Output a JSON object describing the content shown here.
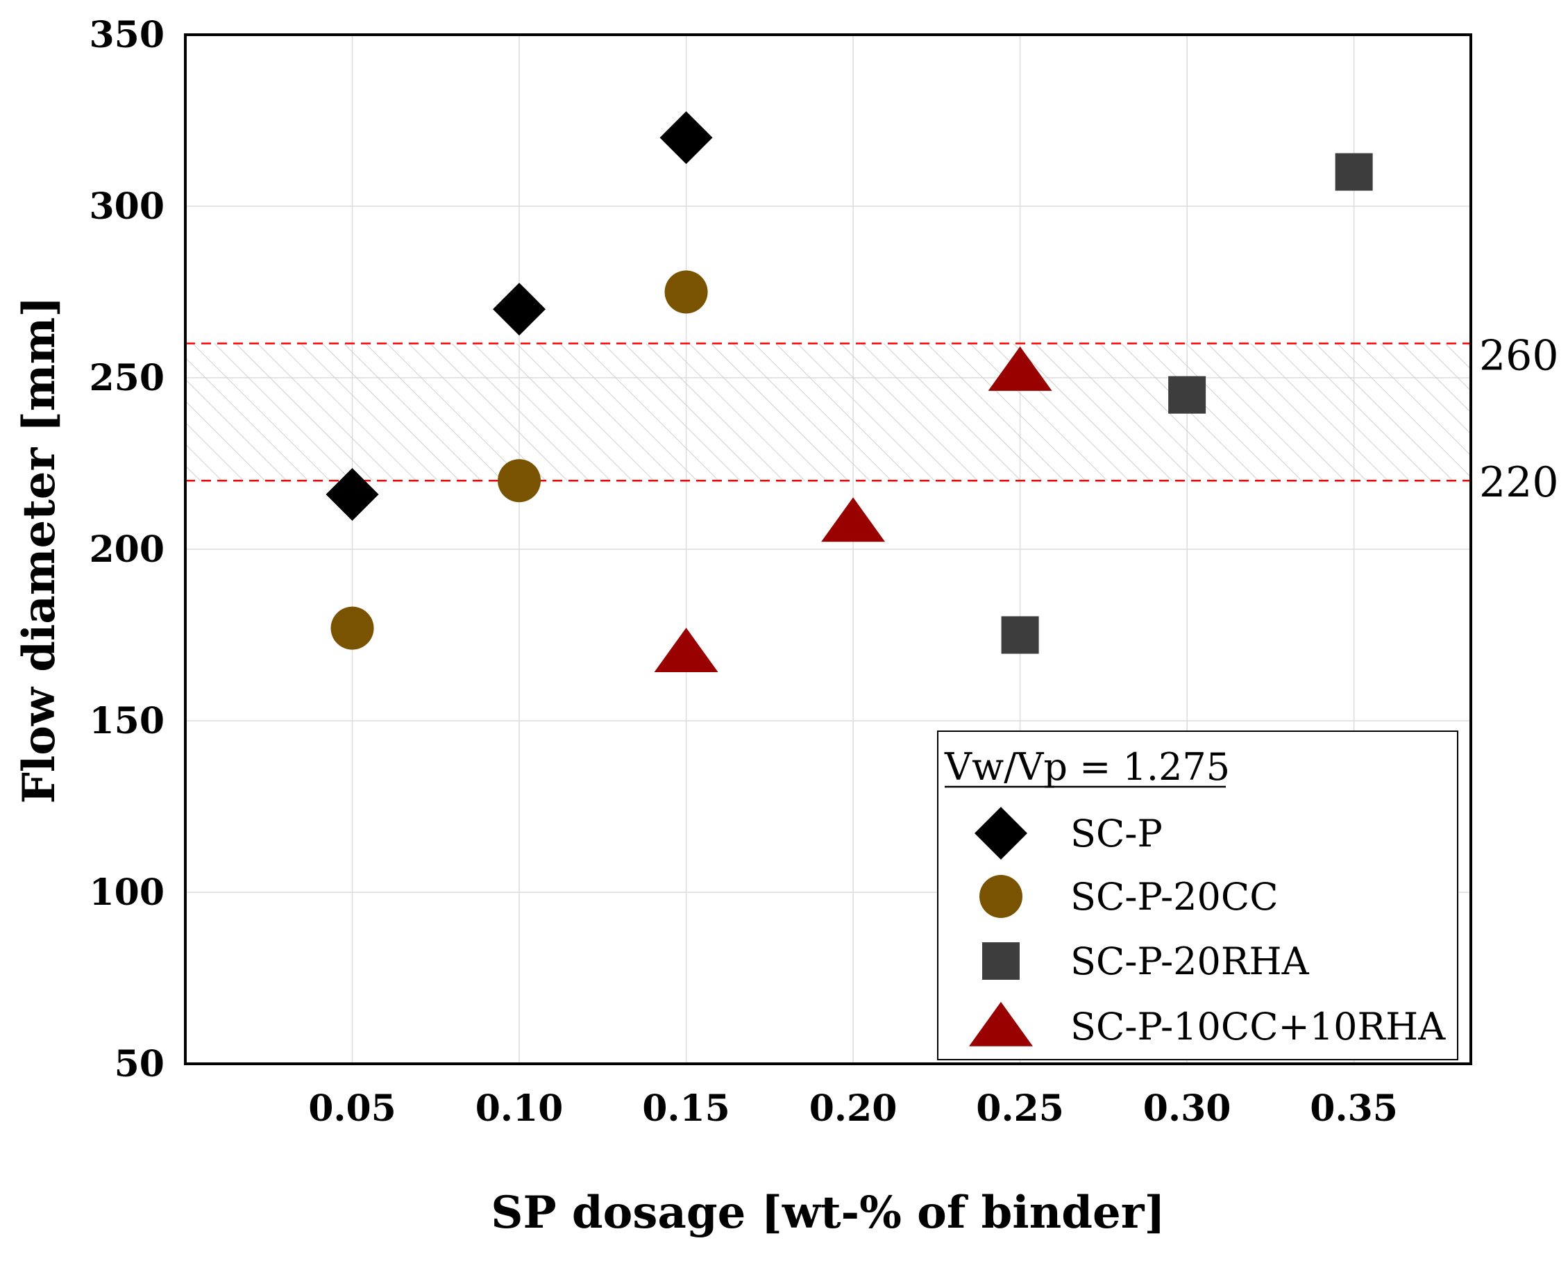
{
  "chart_data": {
    "type": "scatter",
    "title": "",
    "xlabel": "SP dosage [wt-% of binder]",
    "ylabel": "Flow diameter [mm]",
    "xlim": [
      0.0,
      0.385
    ],
    "ylim": [
      50,
      350
    ],
    "xticks": [
      "0.05",
      "0.10",
      "0.15",
      "0.20",
      "0.25",
      "0.30",
      "0.35"
    ],
    "xtick_values": [
      0.05,
      0.1,
      0.15,
      0.2,
      0.25,
      0.3,
      0.35
    ],
    "yticks": [
      "50",
      "100",
      "150",
      "200",
      "250",
      "300",
      "350"
    ],
    "ytick_values": [
      50,
      100,
      150,
      200,
      250,
      300,
      350
    ],
    "grid": true,
    "reference_band": {
      "lower": 220,
      "upper": 260,
      "lower_label": "220",
      "upper_label": "260",
      "color": "#ff0000",
      "hatched": true
    },
    "legend": {
      "title": "Vw/Vp = 1.275",
      "placement": "bottom-right"
    },
    "series": [
      {
        "name": "SC-P",
        "marker": "diamond",
        "color": "#000000",
        "points": [
          [
            0.05,
            216
          ],
          [
            0.1,
            270
          ],
          [
            0.15,
            320
          ]
        ]
      },
      {
        "name": "SC-P-20CC",
        "marker": "circle",
        "color": "#7a5300",
        "points": [
          [
            0.05,
            177
          ],
          [
            0.1,
            220
          ],
          [
            0.15,
            275
          ]
        ]
      },
      {
        "name": "SC-P-20RHA",
        "marker": "square",
        "color": "#3d3d3d",
        "points": [
          [
            0.25,
            175
          ],
          [
            0.3,
            245
          ],
          [
            0.35,
            310
          ]
        ]
      },
      {
        "name": "SC-P-10CC+10RHA",
        "marker": "triangle",
        "color": "#990000",
        "points": [
          [
            0.15,
            170
          ],
          [
            0.2,
            208
          ],
          [
            0.25,
            252
          ]
        ]
      }
    ]
  }
}
